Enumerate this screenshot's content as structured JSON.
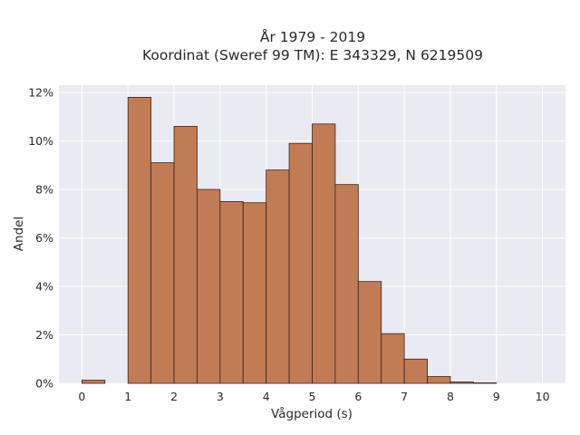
{
  "chart_data": {
    "type": "bar",
    "title_line1": "År 1979 - 2019",
    "title_line2": "Koordinat (Sweref 99 TM): E 343329, N 6219509",
    "xlabel": "Vågperiod (s)",
    "ylabel": "Andel",
    "xlim": [
      -0.5,
      10.5
    ],
    "ylim": [
      0,
      12.3
    ],
    "bin_width": 0.5,
    "x_ticks": [
      0,
      1,
      2,
      3,
      4,
      5,
      6,
      7,
      8,
      9,
      10
    ],
    "x_tick_labels": [
      "0",
      "1",
      "2",
      "3",
      "4",
      "5",
      "6",
      "7",
      "8",
      "9",
      "10"
    ],
    "y_ticks": [
      0,
      2,
      4,
      6,
      8,
      10,
      12
    ],
    "y_tick_labels": [
      "0%",
      "2%",
      "4%",
      "6%",
      "8%",
      "10%",
      "12%"
    ],
    "bins": [
      {
        "x0": 0.0,
        "value": 0.13
      },
      {
        "x0": 1.0,
        "value": 11.8
      },
      {
        "x0": 1.5,
        "value": 9.1
      },
      {
        "x0": 2.0,
        "value": 10.6
      },
      {
        "x0": 2.5,
        "value": 8.0
      },
      {
        "x0": 3.0,
        "value": 7.5
      },
      {
        "x0": 3.5,
        "value": 7.45
      },
      {
        "x0": 4.0,
        "value": 8.8
      },
      {
        "x0": 4.5,
        "value": 9.9
      },
      {
        "x0": 5.0,
        "value": 10.7
      },
      {
        "x0": 5.5,
        "value": 8.2
      },
      {
        "x0": 6.0,
        "value": 4.2
      },
      {
        "x0": 6.5,
        "value": 2.05
      },
      {
        "x0": 7.0,
        "value": 1.0
      },
      {
        "x0": 7.5,
        "value": 0.28
      },
      {
        "x0": 8.0,
        "value": 0.06
      },
      {
        "x0": 8.5,
        "value": 0.02
      }
    ],
    "bar_color": "#c17c55",
    "bar_edge_color": "#3a2418",
    "plot_background": "#eaeaf2",
    "grid_color": "#ffffff",
    "grid": true
  }
}
